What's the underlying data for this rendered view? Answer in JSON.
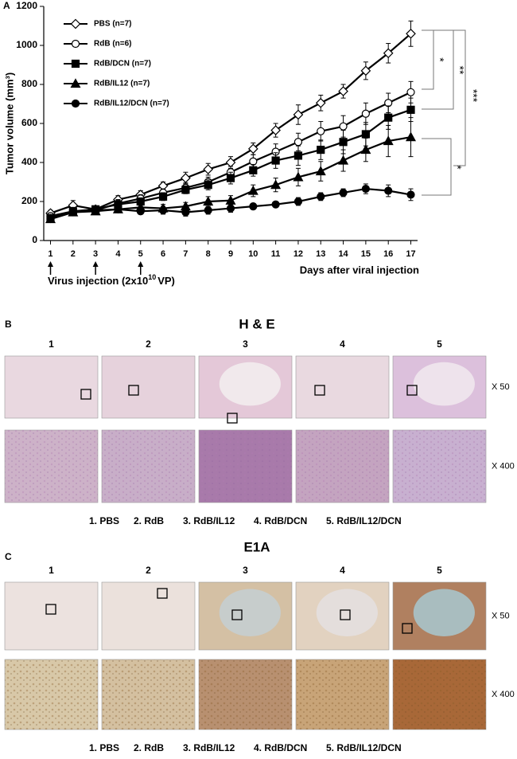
{
  "chart_data": {
    "type": "line",
    "panel_label": "A",
    "ylabel": "Tumor volume (mm³)",
    "xlabel": "Days after viral injection",
    "injection_label": {
      "text": "Virus injection (2x10",
      "sup": "10",
      "after": "VP)"
    },
    "injection_days": [
      1,
      3,
      5
    ],
    "x": [
      1,
      2,
      3,
      4,
      5,
      6,
      7,
      8,
      9,
      10,
      11,
      12,
      13,
      14,
      15,
      16,
      17
    ],
    "xlim": [
      0.7,
      17.3
    ],
    "xticks": [
      1,
      2,
      3,
      4,
      5,
      6,
      7,
      8,
      9,
      10,
      11,
      12,
      13,
      14,
      15,
      16,
      17
    ],
    "ylim": [
      0,
      1200
    ],
    "yticks": [
      0,
      200,
      400,
      600,
      800,
      1000,
      1200
    ],
    "grid": false,
    "legend": "upper left",
    "series": [
      {
        "name": "PBS (n=7)",
        "color": "#000000",
        "marker": "diamond-open",
        "values": [
          140,
          180,
          160,
          210,
          235,
          280,
          320,
          365,
          400,
          470,
          565,
          645,
          705,
          765,
          870,
          960,
          1060
        ],
        "errors": [
          15,
          25,
          15,
          20,
          20,
          20,
          30,
          30,
          30,
          30,
          35,
          50,
          40,
          35,
          45,
          50,
          65
        ]
      },
      {
        "name": "RdB (n=6)",
        "color": "#000000",
        "marker": "circle-open",
        "values": [
          125,
          150,
          155,
          190,
          215,
          245,
          270,
          300,
          350,
          405,
          455,
          505,
          560,
          585,
          650,
          705,
          760
        ],
        "errors": [
          15,
          20,
          15,
          20,
          20,
          20,
          25,
          25,
          30,
          35,
          40,
          45,
          50,
          55,
          55,
          50,
          55
        ]
      },
      {
        "name": "RdB/DCN  (n=7)",
        "color": "#000000",
        "marker": "square",
        "values": [
          115,
          150,
          160,
          185,
          200,
          225,
          260,
          285,
          320,
          360,
          410,
          435,
          465,
          505,
          545,
          630,
          670
        ],
        "errors": [
          15,
          15,
          15,
          15,
          15,
          20,
          20,
          25,
          30,
          30,
          40,
          50,
          50,
          60,
          60,
          60,
          60
        ]
      },
      {
        "name": "RdB/IL12  (n=7)",
        "color": "#000000",
        "marker": "triangle",
        "values": [
          110,
          145,
          150,
          160,
          170,
          165,
          175,
          200,
          205,
          255,
          285,
          325,
          355,
          410,
          465,
          510,
          530
        ],
        "errors": [
          15,
          15,
          15,
          15,
          15,
          20,
          20,
          25,
          25,
          30,
          35,
          45,
          50,
          55,
          60,
          80,
          100
        ]
      },
      {
        "name": "RdB/IL12/DCN  (n=7)",
        "color": "#000000",
        "marker": "circle",
        "values": [
          110,
          145,
          155,
          160,
          150,
          155,
          145,
          155,
          165,
          175,
          185,
          200,
          225,
          245,
          265,
          255,
          235
        ],
        "errors": [
          15,
          15,
          15,
          15,
          15,
          20,
          20,
          20,
          20,
          15,
          15,
          20,
          20,
          20,
          25,
          30,
          30
        ]
      }
    ],
    "annotations": [
      "*",
      "**",
      "***",
      "*"
    ]
  },
  "panels": [
    {
      "label": "B",
      "title": "H & E",
      "columns": [
        "1",
        "2",
        "3",
        "4",
        "5"
      ],
      "rows": [
        "X 50",
        "X 400"
      ],
      "legend": [
        "1. PBS",
        "2. RdB",
        "3. RdB/IL12",
        "4. RdB/DCN",
        "5. RdB/IL12/DCN"
      ]
    },
    {
      "label": "C",
      "title": "E1A",
      "columns": [
        "1",
        "2",
        "3",
        "4",
        "5"
      ],
      "rows": [
        "X 50",
        "X 400"
      ],
      "legend": [
        "1. PBS",
        "2. RdB",
        "3. RdB/IL12",
        "4. RdB/DCN",
        "5. RdB/IL12/DCN"
      ]
    }
  ]
}
